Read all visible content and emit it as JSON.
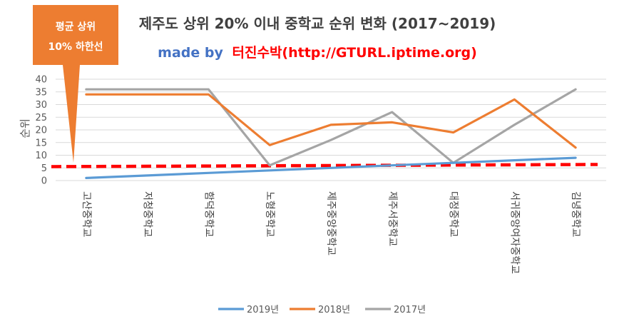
{
  "chart_data": {
    "type": "line",
    "title": "제주도 상위 20% 이내 중학교 순위 변화 (2017~2019)",
    "subtitle": {
      "made_by": "made by",
      "author": "터진수박(http://GTURL.iptime.org)"
    },
    "ylabel": "순위",
    "ylim": [
      0,
      40
    ],
    "yticks": [
      0,
      5,
      10,
      15,
      20,
      25,
      30,
      35,
      40
    ],
    "grid": true,
    "legend_position": "bottom",
    "categories": [
      "고산중학교",
      "저청중학교",
      "함덕중학교",
      "노형중학교",
      "제주중앙중학교",
      "제주서중학교",
      "대정중학교",
      "서귀중앙여자중학교",
      "김녕중학교"
    ],
    "series": [
      {
        "name": "2019년",
        "color": "#5b9bd5",
        "values": [
          1,
          2,
          3,
          4,
          5,
          6,
          7,
          8,
          9
        ]
      },
      {
        "name": "2018년",
        "color": "#ed7d31",
        "values": [
          34,
          34,
          34,
          14,
          22,
          23,
          19,
          32,
          13
        ]
      },
      {
        "name": "2017년",
        "color": "#a5a5a5",
        "values": [
          36,
          36,
          36,
          6,
          16,
          27,
          7,
          22,
          36
        ]
      }
    ],
    "reference_line": {
      "label_line1": "평균 상위",
      "label_line2": "10% 하한선",
      "value": 5.5,
      "color": "#ff0000"
    },
    "callout_color": "#ed7d31",
    "made_by_color": "#4472c4",
    "author_color": "#ff0000"
  }
}
